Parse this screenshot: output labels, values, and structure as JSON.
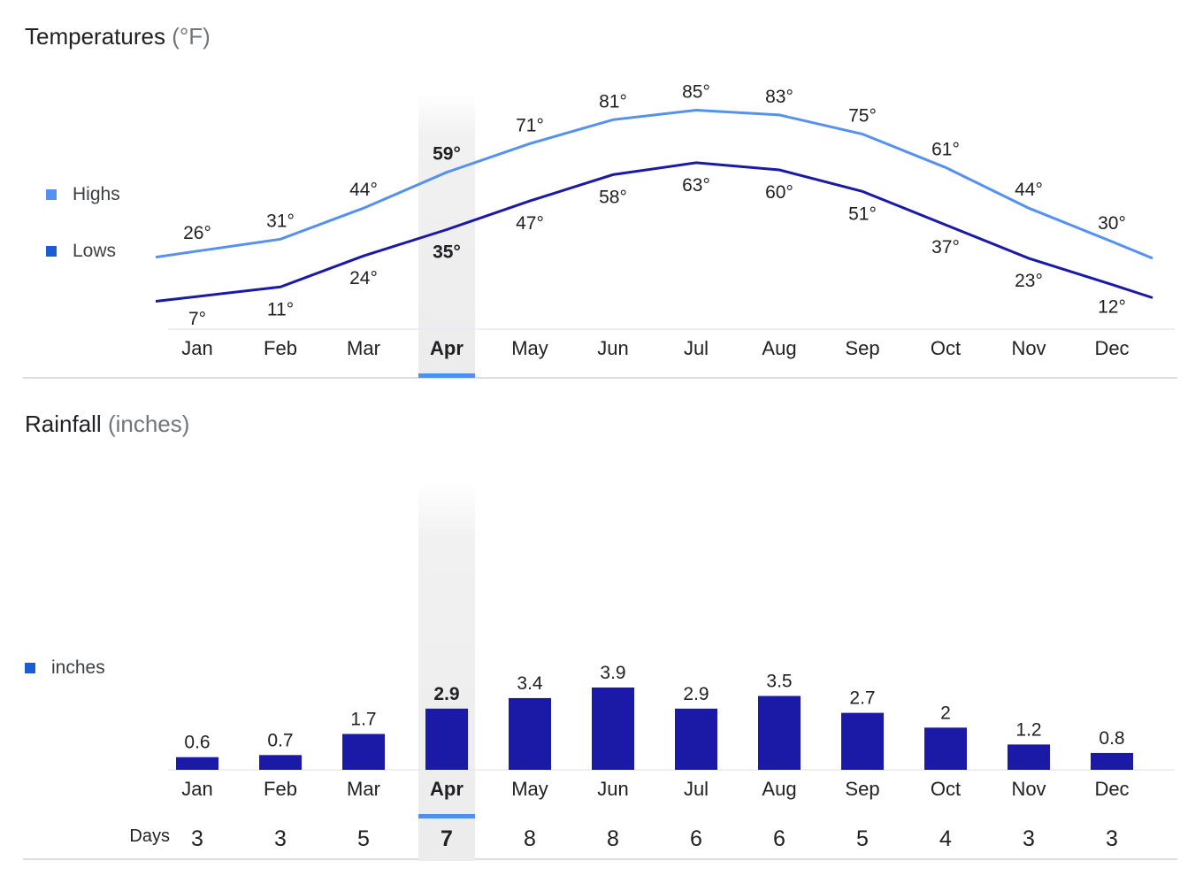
{
  "temperature": {
    "title": "Temperatures",
    "unit": "(°F)",
    "legend": {
      "highs": "Highs",
      "lows": "Lows"
    },
    "colors": {
      "highs": "#5591f0",
      "lows": "#1a1aa6",
      "legend_lows": "#1a5bd6"
    }
  },
  "rainfall": {
    "title": "Rainfall",
    "unit": "(inches)",
    "legend": {
      "inches": "inches"
    },
    "colors": {
      "bars": "#1a1aa6",
      "legend": "#1a5bd6"
    },
    "days_label": "Days",
    "days": [
      3,
      3,
      5,
      7,
      8,
      8,
      6,
      6,
      5,
      4,
      3,
      3
    ]
  },
  "selected_month_index": 3,
  "chart_data": [
    {
      "type": "line",
      "title": "Temperatures (°F)",
      "categories": [
        "Jan",
        "Feb",
        "Mar",
        "Apr",
        "May",
        "Jun",
        "Jul",
        "Aug",
        "Sep",
        "Oct",
        "Nov",
        "Dec"
      ],
      "series": [
        {
          "name": "Highs",
          "values": [
            26,
            31,
            44,
            59,
            71,
            81,
            85,
            83,
            75,
            61,
            44,
            30
          ]
        },
        {
          "name": "Lows",
          "values": [
            7,
            11,
            24,
            35,
            47,
            58,
            63,
            60,
            51,
            37,
            23,
            12
          ]
        }
      ],
      "ylim": [
        0,
        95
      ]
    },
    {
      "type": "bar",
      "title": "Rainfall (inches)",
      "categories": [
        "Jan",
        "Feb",
        "Mar",
        "Apr",
        "May",
        "Jun",
        "Jul",
        "Aug",
        "Sep",
        "Oct",
        "Nov",
        "Dec"
      ],
      "values": [
        0.6,
        0.7,
        1.7,
        2.9,
        3.4,
        3.9,
        2.9,
        3.5,
        2.7,
        2,
        1.2,
        0.8
      ],
      "value_labels": [
        "0.6",
        "0.7",
        "1.7",
        "2.9",
        "3.4",
        "3.9",
        "2.9",
        "3.5",
        "2.7",
        "2",
        "1.2",
        "0.8"
      ],
      "ylim": [
        0,
        4
      ]
    }
  ]
}
